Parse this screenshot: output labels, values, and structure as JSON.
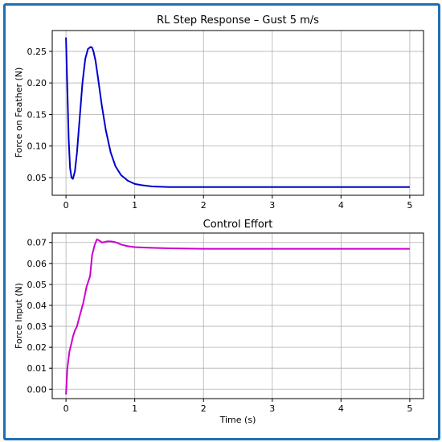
{
  "chart_data": [
    {
      "type": "line",
      "title": "RL Step Response – Gust 5 m/s",
      "xlabel": "",
      "ylabel": "Force on Feather (N)",
      "xlim": [
        -0.2,
        5.2
      ],
      "ylim": [
        0.022,
        0.283
      ],
      "xticks": [
        "0",
        "1",
        "2",
        "3",
        "4",
        "5"
      ],
      "yticks": [
        "0.05",
        "0.10",
        "0.15",
        "0.20",
        "0.25"
      ],
      "grid": true,
      "color": "#0000cc",
      "series": [
        {
          "x": [
            0,
            0.02,
            0.04,
            0.06,
            0.08,
            0.1,
            0.13,
            0.16,
            0.2,
            0.24,
            0.28,
            0.32,
            0.36,
            0.38,
            0.4,
            0.43,
            0.47,
            0.52,
            0.58,
            0.65,
            0.72,
            0.8,
            0.9,
            1.0,
            1.1,
            1.25,
            1.5,
            2.0,
            3.0,
            4.0,
            5.0
          ],
          "values": [
            0.272,
            0.19,
            0.11,
            0.065,
            0.05,
            0.048,
            0.06,
            0.09,
            0.145,
            0.2,
            0.238,
            0.254,
            0.257,
            0.256,
            0.25,
            0.235,
            0.205,
            0.165,
            0.125,
            0.09,
            0.068,
            0.054,
            0.045,
            0.04,
            0.038,
            0.036,
            0.035,
            0.035,
            0.035,
            0.035,
            0.035
          ]
        }
      ]
    },
    {
      "type": "line",
      "title": "Control Effort",
      "xlabel": "Time (s)",
      "ylabel": "Force Input (N)",
      "xlim": [
        -0.2,
        5.2
      ],
      "ylim": [
        -0.0045,
        0.0745
      ],
      "xticks": [
        "0",
        "1",
        "2",
        "3",
        "4",
        "5"
      ],
      "yticks": [
        "0.00",
        "0.01",
        "0.02",
        "0.03",
        "0.04",
        "0.05",
        "0.06",
        "0.07"
      ],
      "grid": true,
      "color": "#cc00cc",
      "series": [
        {
          "x": [
            0,
            0.02,
            0.05,
            0.08,
            0.1,
            0.13,
            0.16,
            0.2,
            0.25,
            0.3,
            0.35,
            0.38,
            0.42,
            0.45,
            0.48,
            0.52,
            0.56,
            0.6,
            0.65,
            0.7,
            0.75,
            0.8,
            0.9,
            1.0,
            1.2,
            1.5,
            2.0,
            3.0,
            4.0,
            5.0
          ],
          "values": [
            -0.0025,
            0.01,
            0.018,
            0.022,
            0.025,
            0.028,
            0.03,
            0.035,
            0.041,
            0.049,
            0.054,
            0.064,
            0.069,
            0.0715,
            0.071,
            0.07,
            0.0702,
            0.0705,
            0.0705,
            0.0703,
            0.0698,
            0.069,
            0.0682,
            0.0678,
            0.0675,
            0.0672,
            0.067,
            0.067,
            0.067,
            0.067
          ]
        }
      ]
    }
  ]
}
